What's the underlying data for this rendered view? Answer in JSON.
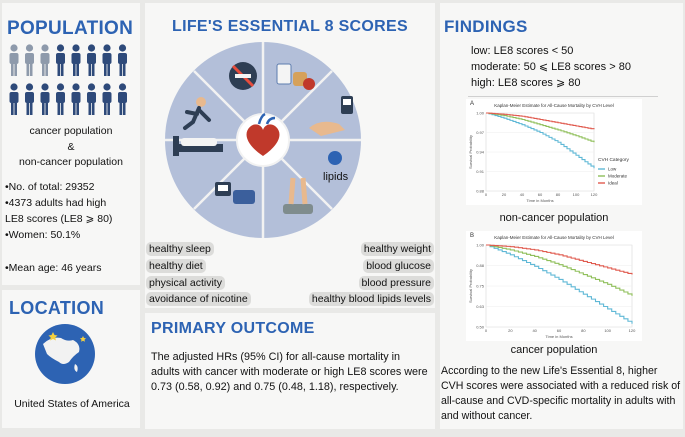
{
  "population": {
    "title": "POPULATION",
    "groups_line1": "cancer population",
    "groups_amp": "&",
    "groups_line2": "non-cancer population",
    "stats": [
      "•No. of total: 29352",
      "•4373 adults had high",
      "LE8 scores (LE8 ⩾ 80)",
      "•Women: 50.1%",
      "•Mean age: 46 years"
    ]
  },
  "location": {
    "title": "LOCATION",
    "country": "United States of America"
  },
  "le8": {
    "title": "LIFE'S ESSENTIAL 8 SCORES",
    "wheel_label": "lipids",
    "pills_left": [
      "healthy sleep",
      "healthy diet",
      "physical activity",
      "avoidance of nicotine"
    ],
    "pills_right": [
      "healthy weight",
      "blood glucose",
      "blood pressure",
      "healthy blood lipids levels"
    ],
    "colors": {
      "wheel": "#b3bfd9",
      "wheel_lines": "#f2f2f2",
      "title": "#2d63b3"
    }
  },
  "outcome": {
    "title": "PRIMARY OUTCOME",
    "text": "The adjusted HRs (95% CI) for all-cause mortality in adults with cancer with moderate or high LE8 scores were 0.73 (0.58, 0.92) and 0.75 (0.48, 1.18), respectively."
  },
  "findings": {
    "title": "FINDINGS",
    "definitions": [
      "low: LE8 scores < 50",
      "moderate: 50 ⩽ LE8 scores > 80",
      "high: LE8 scores ⩾ 80"
    ],
    "chart_a_caption": "non-cancer population",
    "chart_b_caption": "cancer population",
    "conclusion": "According to the new Life's Essential 8, higher CVH scores were associated with a reduced risk of all-cause and CVD-specific mortality in adults with and without cancer."
  },
  "chart_data": [
    {
      "type": "line",
      "panel": "A",
      "title": "Kaplan-Meier Estimate for All-Cause Mortality by CVH Level",
      "xlabel": "Time in Months",
      "ylabel": "Survival Probability",
      "legend_title": "CVH Category",
      "legend_position": "right",
      "ylim": [
        0.88,
        1.0
      ],
      "x": [
        0,
        20,
        40,
        60,
        80,
        100,
        120
      ],
      "series": [
        {
          "name": "Low",
          "color": "#5fb8d6",
          "values": [
            1.0,
            0.992,
            0.982,
            0.97,
            0.955,
            0.935,
            0.915
          ]
        },
        {
          "name": "Moderate",
          "color": "#8fbf5a",
          "values": [
            1.0,
            0.996,
            0.99,
            0.982,
            0.974,
            0.965,
            0.955
          ]
        },
        {
          "name": "Ideal",
          "color": "#e05a4e",
          "values": [
            1.0,
            0.998,
            0.995,
            0.99,
            0.985,
            0.98,
            0.975
          ]
        }
      ]
    },
    {
      "type": "line",
      "panel": "B",
      "title": "Kaplan-Meier Estimate for All-Cause Mortality by CVH Level",
      "xlabel": "Time in Months",
      "ylabel": "Survival Probability",
      "ylim": [
        0.5,
        1.0
      ],
      "x": [
        0,
        20,
        40,
        60,
        80,
        100,
        120
      ],
      "series": [
        {
          "name": "Low",
          "color": "#5fb8d6",
          "values": [
            1.0,
            0.94,
            0.87,
            0.79,
            0.7,
            0.61,
            0.52
          ]
        },
        {
          "name": "Moderate",
          "color": "#8fbf5a",
          "values": [
            1.0,
            0.97,
            0.93,
            0.88,
            0.82,
            0.76,
            0.69
          ]
        },
        {
          "name": "Ideal",
          "color": "#e05a4e",
          "values": [
            1.0,
            0.99,
            0.97,
            0.94,
            0.9,
            0.86,
            0.82
          ]
        }
      ]
    }
  ]
}
